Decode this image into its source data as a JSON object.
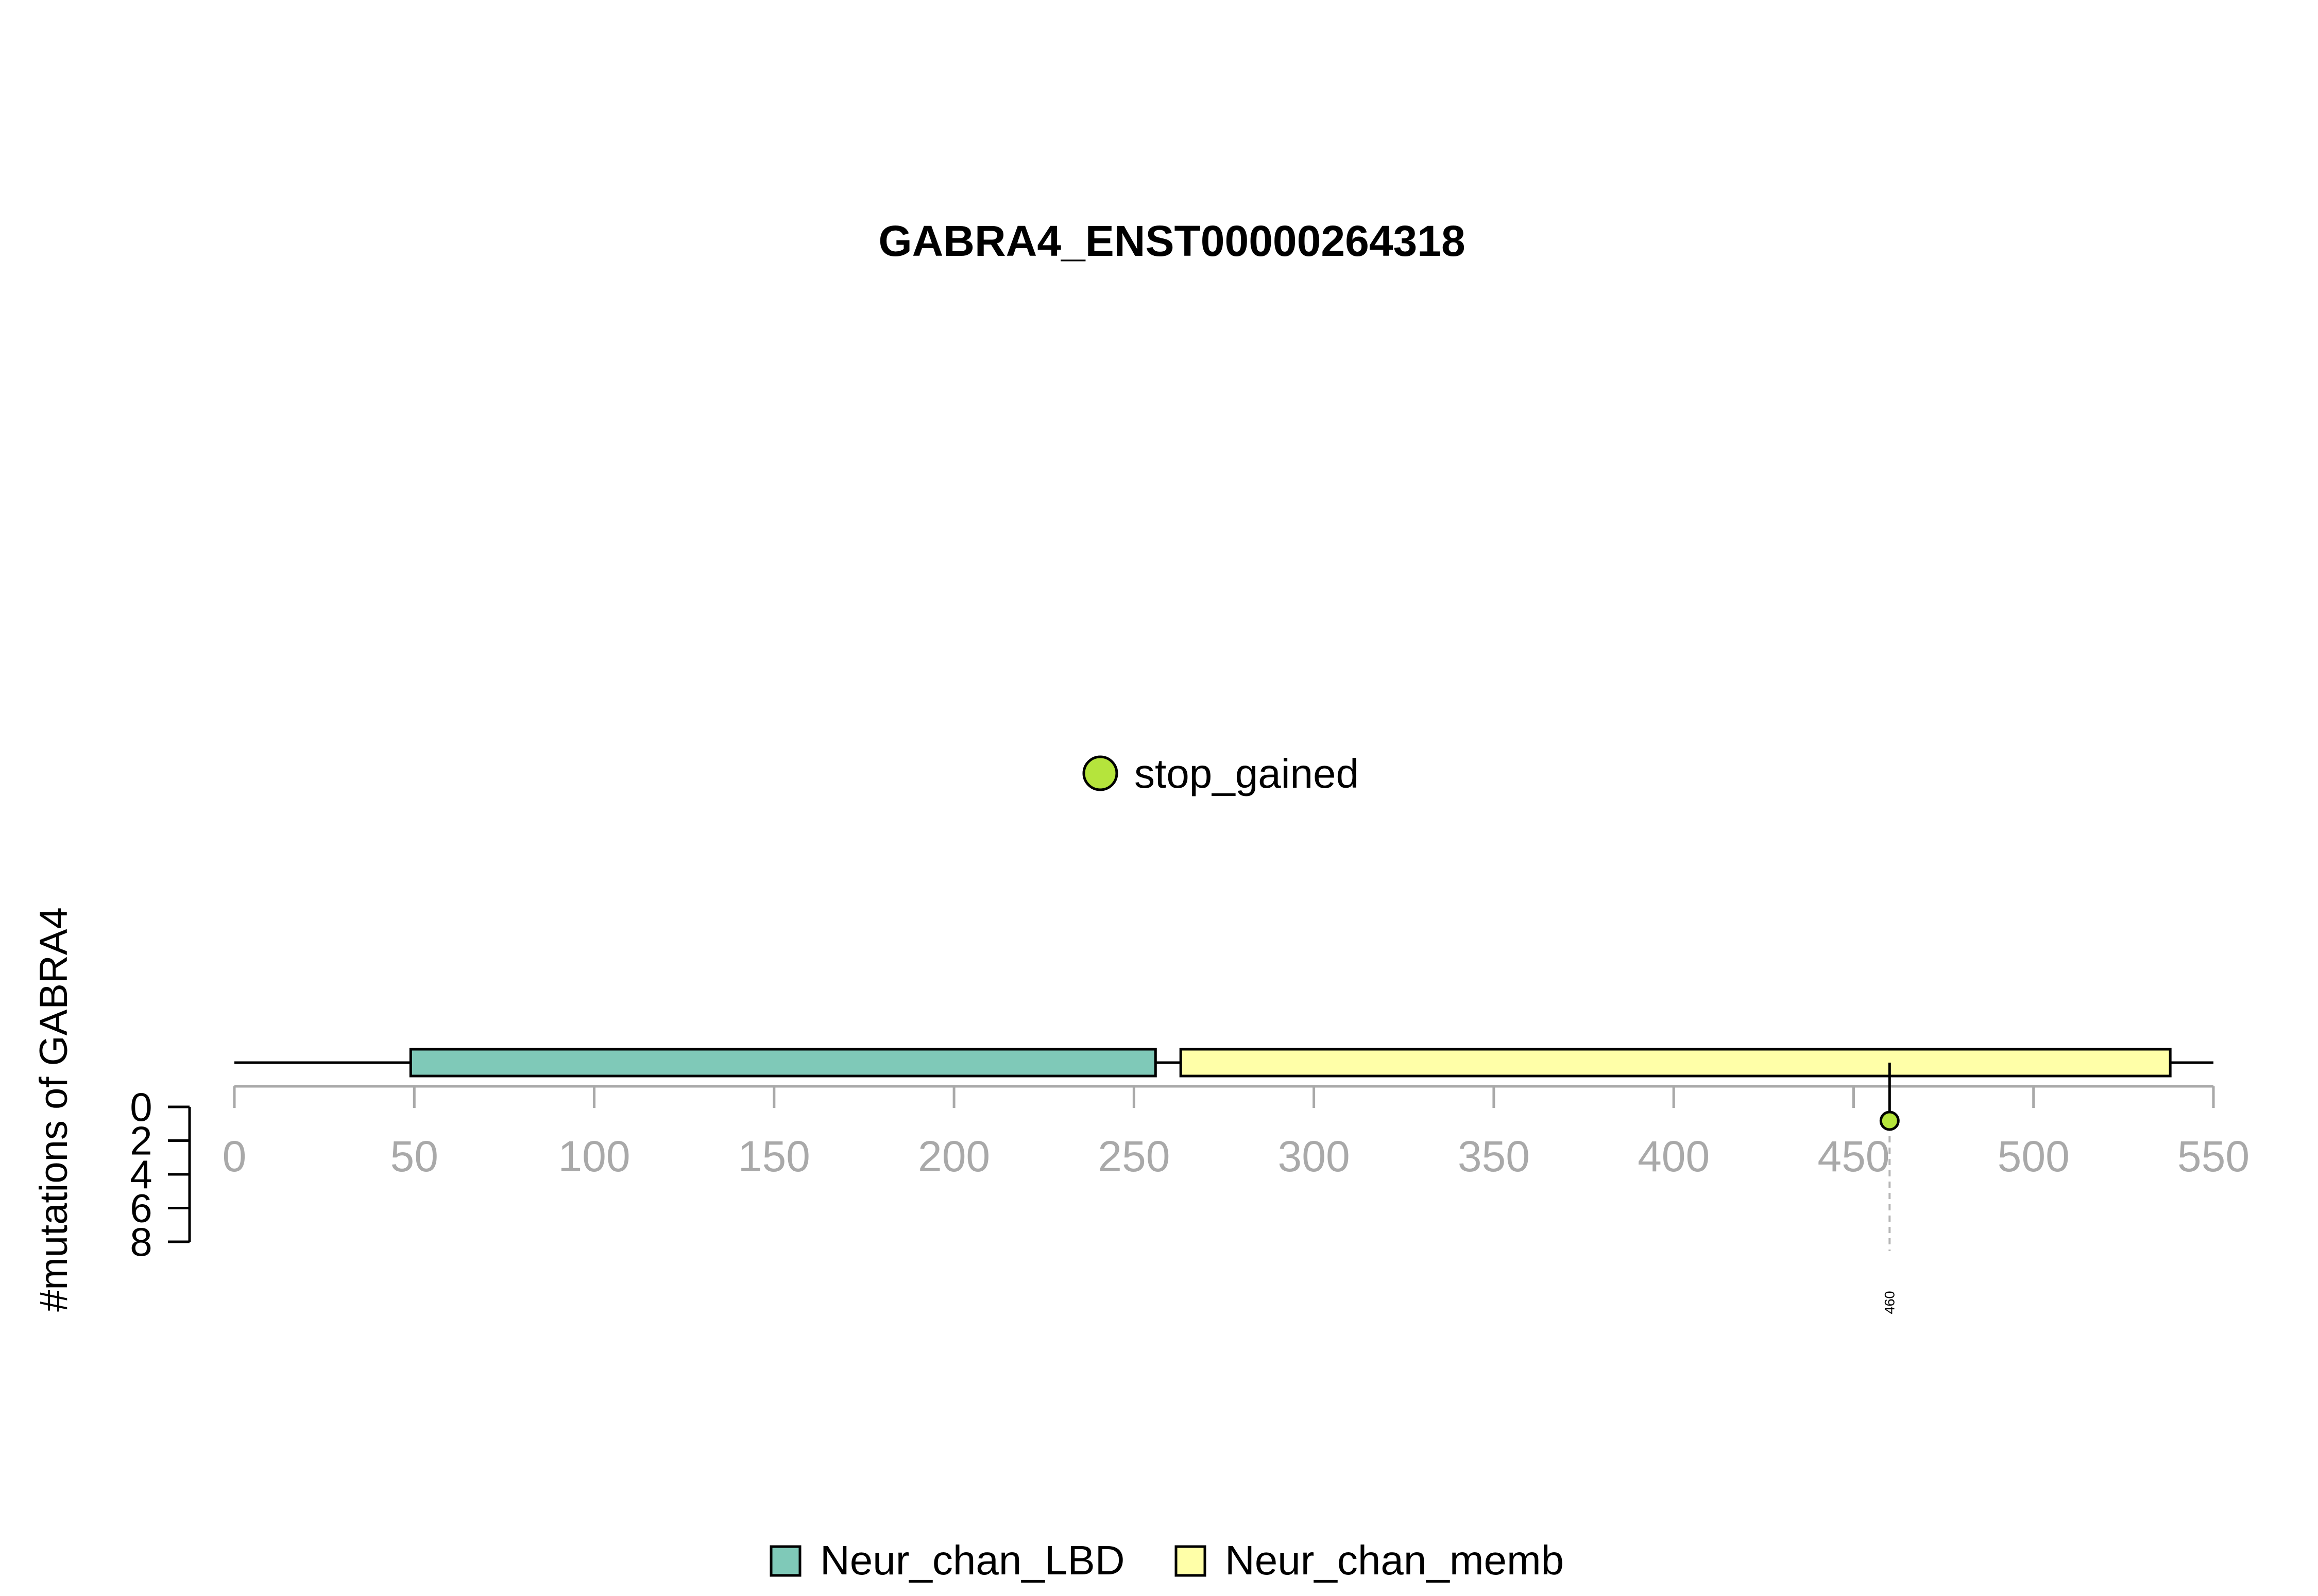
{
  "chart_data": {
    "type": "lollipop",
    "title": "GABRA4_ENST00000264318",
    "ylabel": "#mutations of GABRA4",
    "xlim": [
      0,
      550
    ],
    "x_ticks": [
      0,
      50,
      100,
      150,
      200,
      250,
      300,
      350,
      400,
      450,
      500,
      550
    ],
    "protein_length": 550,
    "y_ticks": [
      0,
      2,
      4,
      6,
      8
    ],
    "ylim": [
      0,
      8
    ],
    "domains": [
      {
        "name": "Neur_chan_LBD",
        "start": 49,
        "end": 256,
        "color": "#7fc9b8"
      },
      {
        "name": "Neur_chan_memb",
        "start": 263,
        "end": 538,
        "color": "#ffffa8"
      }
    ],
    "mutations": [
      {
        "position": 460,
        "count": 1,
        "type": "stop_gained",
        "label": "460"
      }
    ],
    "mutation_types": [
      {
        "name": "stop_gained",
        "color": "#b5e43c"
      }
    ],
    "legend_top_position": "top-center",
    "legend_bottom_position": "bottom-center"
  }
}
